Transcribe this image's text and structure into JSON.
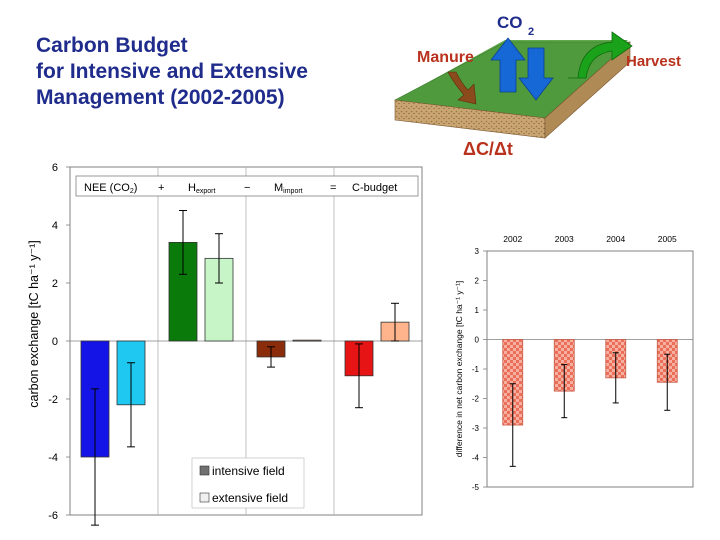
{
  "title_lines": [
    "Carbon Budget",
    "for Intensive and Extensive",
    "Management (2002-2005)"
  ],
  "diagram": {
    "co2_label": "CO",
    "co2_sub": "2",
    "manure_label": "Manure",
    "harvest_label": "Harvest",
    "dc_label": "ΔC/Δt",
    "colors": {
      "green_arrow": "#1aa31a",
      "blue_arrow": "#1668d6",
      "brown_arrow": "#8b4a1c",
      "field": "#5ea64a",
      "soil": "#c8a06b",
      "label_red": "#b8321e",
      "label_blue": "#1f2c8c"
    }
  },
  "chart_data": [
    {
      "type": "bar",
      "ylabel": "carbon exchange [tC ha⁻¹ y⁻¹]",
      "ylim": [
        -6,
        6
      ],
      "yticks": [
        -6,
        -4,
        -2,
        0,
        2,
        4,
        6
      ],
      "grid": false,
      "legend_top": {
        "placement": "top",
        "items": [
          "NEE (CO",
          "2",
          ")",
          "+",
          "H",
          "export",
          "−",
          "M",
          "import",
          "=",
          "C-budget"
        ]
      },
      "legend_bottom": {
        "placement": "bottom-center",
        "entries": [
          {
            "name": "intensive field",
            "color": "#707070"
          },
          {
            "name": "extensive field",
            "color": "#f0f0f0"
          }
        ]
      },
      "groups": [
        "NEE (CO2)",
        "Hexport",
        "Mimport",
        "C-budget"
      ],
      "series": [
        {
          "name": "intensive field",
          "values": [
            -4.0,
            3.4,
            -0.55,
            -1.2
          ],
          "errors": [
            2.35,
            1.1,
            0.35,
            1.1
          ],
          "colors": [
            "#1414e6",
            "#0a7a0a",
            "#8b2d0a",
            "#e61414"
          ]
        },
        {
          "name": "extensive field",
          "values": [
            -2.2,
            2.85,
            0.03,
            0.65
          ],
          "errors": [
            1.45,
            0.85,
            0.0,
            0.65
          ],
          "colors": [
            "#1ec8f0",
            "#c8f5c8",
            "#d2aa8c",
            "#ffb48c"
          ]
        }
      ]
    },
    {
      "type": "bar",
      "ylabel": "difference in net carbon exchange [tC ha⁻¹ y⁻¹]",
      "ylim": [
        -5,
        3
      ],
      "yticks": [
        -5,
        -4,
        -3,
        -2,
        -1,
        0,
        1,
        2,
        3
      ],
      "categories": [
        "2002",
        "2003",
        "2004",
        "2005"
      ],
      "values": [
        -2.9,
        -1.75,
        -1.3,
        -1.45
      ],
      "errors": [
        1.4,
        0.9,
        0.85,
        0.95
      ],
      "bar_color": "#f0826e",
      "grid": false
    }
  ]
}
